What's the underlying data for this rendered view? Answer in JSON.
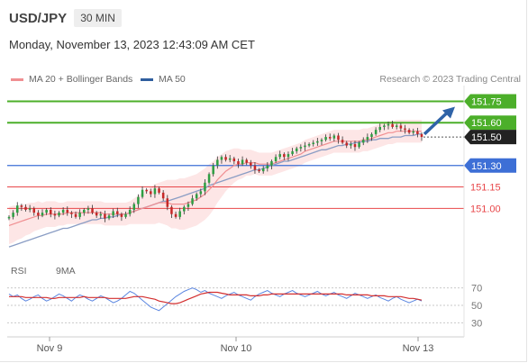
{
  "header": {
    "symbol": "USD/JPY",
    "timeframe": "30 MIN"
  },
  "datetime": "Monday, November 13, 2023 12:43:09 AM CET",
  "legend": {
    "ma20_bb": "MA 20 + Bollinger Bands",
    "ma50": "MA 50",
    "credit": "Research © 2023 Trading Central"
  },
  "rsi_legend": {
    "rsi": "RSI",
    "ma9": "9MA"
  },
  "colors": {
    "green": "#4caf2a",
    "blue": "#3d6fd6",
    "red": "#e8474a",
    "ma20": "#f08f92",
    "ma50": "#8a9dc4",
    "band": "#fde3e3",
    "candle_up": "#2e9e43",
    "candle_down": "#c62828",
    "arrow": "#2f63a8",
    "current": "#222222"
  },
  "chart_data": [
    {
      "type": "candlestick",
      "title": "",
      "ylim": [
        150.63,
        151.86
      ],
      "x_labels": [
        "Nov 9",
        "Nov 10",
        "Nov 13"
      ],
      "levels": [
        {
          "value": 151.75,
          "label": "151.75",
          "style": "green"
        },
        {
          "value": 151.6,
          "label": "151.60",
          "style": "green"
        },
        {
          "value": 151.5,
          "label": "151.50",
          "style": "current"
        },
        {
          "value": 151.3,
          "label": "151.30",
          "style": "blue"
        },
        {
          "value": 151.15,
          "label": "151.15",
          "style": "red"
        },
        {
          "value": 151.0,
          "label": "151.00",
          "style": "red"
        }
      ],
      "close_series": [
        150.94,
        150.97,
        151.02,
        151.01,
        150.99,
        151.0,
        150.97,
        150.95,
        150.97,
        150.99,
        150.96,
        150.95,
        150.97,
        150.99,
        150.97,
        150.96,
        150.94,
        150.97,
        150.99,
        151.0,
        150.97,
        150.95,
        150.96,
        150.93,
        150.95,
        150.98,
        150.96,
        150.94,
        150.96,
        150.99,
        151.03,
        151.08,
        151.13,
        151.12,
        151.1,
        151.14,
        151.11,
        151.07,
        151.01,
        150.96,
        150.94,
        150.98,
        151.01,
        151.03,
        151.07,
        151.1,
        151.12,
        151.18,
        151.24,
        151.3,
        151.34,
        151.36,
        151.34,
        151.35,
        151.33,
        151.31,
        151.34,
        151.32,
        151.3,
        151.27,
        151.26,
        151.28,
        151.3,
        151.33,
        151.36,
        151.38,
        151.36,
        151.38,
        151.4,
        151.42,
        151.43,
        151.44,
        151.45,
        151.46,
        151.47,
        151.48,
        151.5,
        151.49,
        151.51,
        151.48,
        151.46,
        151.44,
        151.45,
        151.43,
        151.46,
        151.48,
        151.5,
        151.52,
        151.55,
        151.57,
        151.58,
        151.59,
        151.57,
        151.58,
        151.56,
        151.55,
        151.53,
        151.54,
        151.52,
        151.5
      ],
      "ma20": [
        150.88,
        150.89,
        150.9,
        150.91,
        150.92,
        150.93,
        150.94,
        150.95,
        150.95,
        150.96,
        150.96,
        150.96,
        150.96,
        150.96,
        150.97,
        150.97,
        150.97,
        150.97,
        150.97,
        150.97,
        150.97,
        150.97,
        150.97,
        150.96,
        150.96,
        150.96,
        150.96,
        150.96,
        150.96,
        150.97,
        150.98,
        150.99,
        151.0,
        151.01,
        151.02,
        151.03,
        151.04,
        151.04,
        151.04,
        151.03,
        151.03,
        151.03,
        151.03,
        151.04,
        151.05,
        151.06,
        151.08,
        151.1,
        151.13,
        151.16,
        151.2,
        151.23,
        151.26,
        151.28,
        151.3,
        151.31,
        151.31,
        151.32,
        151.32,
        151.32,
        151.31,
        151.31,
        151.31,
        151.31,
        151.32,
        151.33,
        151.34,
        151.35,
        151.36,
        151.37,
        151.38,
        151.4,
        151.41,
        151.42,
        151.43,
        151.44,
        151.45,
        151.46,
        151.47,
        151.47,
        151.47,
        151.47,
        151.47,
        151.47,
        151.47,
        151.48,
        151.48,
        151.49,
        151.5,
        151.51,
        151.52,
        151.53,
        151.53,
        151.54,
        151.54,
        151.54,
        151.54,
        151.54,
        151.54,
        151.54
      ],
      "ma50": [
        150.73,
        150.74,
        150.75,
        150.76,
        150.77,
        150.78,
        150.79,
        150.8,
        150.81,
        150.82,
        150.83,
        150.84,
        150.85,
        150.86,
        150.86,
        150.87,
        150.88,
        150.89,
        150.9,
        150.91,
        150.92,
        150.92,
        150.93,
        150.93,
        150.94,
        150.94,
        150.95,
        150.96,
        150.96,
        150.97,
        150.98,
        150.99,
        151.0,
        151.01,
        151.02,
        151.03,
        151.04,
        151.05,
        151.05,
        151.06,
        151.07,
        151.08,
        151.09,
        151.1,
        151.11,
        151.12,
        151.13,
        151.14,
        151.16,
        151.17,
        151.18,
        151.19,
        151.2,
        151.21,
        151.22,
        151.23,
        151.24,
        151.25,
        151.26,
        151.27,
        151.27,
        151.28,
        151.29,
        151.3,
        151.31,
        151.32,
        151.33,
        151.33,
        151.34,
        151.35,
        151.36,
        151.37,
        151.38,
        151.39,
        151.4,
        151.41,
        151.41,
        151.42,
        151.43,
        151.44,
        151.44,
        151.45,
        151.45,
        151.46,
        151.46,
        151.47,
        151.47,
        151.48,
        151.48,
        151.49,
        151.49,
        151.49,
        151.5,
        151.5,
        151.5,
        151.51,
        151.51,
        151.51,
        151.52,
        151.52
      ],
      "band_width": [
        0.13,
        0.13,
        0.12,
        0.12,
        0.11,
        0.11,
        0.1,
        0.1,
        0.09,
        0.09,
        0.09,
        0.09,
        0.08,
        0.08,
        0.08,
        0.08,
        0.08,
        0.08,
        0.08,
        0.08,
        0.08,
        0.08,
        0.08,
        0.08,
        0.08,
        0.08,
        0.08,
        0.08,
        0.08,
        0.08,
        0.09,
        0.1,
        0.11,
        0.12,
        0.13,
        0.14,
        0.14,
        0.15,
        0.16,
        0.17,
        0.17,
        0.18,
        0.18,
        0.18,
        0.18,
        0.18,
        0.18,
        0.18,
        0.18,
        0.17,
        0.16,
        0.15,
        0.14,
        0.13,
        0.12,
        0.11,
        0.1,
        0.09,
        0.09,
        0.08,
        0.08,
        0.08,
        0.08,
        0.08,
        0.08,
        0.08,
        0.08,
        0.08,
        0.08,
        0.08,
        0.08,
        0.08,
        0.08,
        0.08,
        0.08,
        0.08,
        0.08,
        0.08,
        0.08,
        0.08,
        0.08,
        0.08,
        0.08,
        0.08,
        0.08,
        0.08,
        0.08,
        0.08,
        0.08,
        0.08,
        0.08,
        0.08,
        0.08,
        0.08,
        0.08,
        0.08,
        0.08,
        0.08,
        0.08,
        0.08
      ]
    },
    {
      "type": "line",
      "title": "",
      "ylim": [
        20,
        80
      ],
      "y_ticks": [
        70,
        50,
        30
      ],
      "series": [
        {
          "name": "RSI",
          "values": [
            63,
            60,
            62,
            58,
            55,
            57,
            60,
            62,
            58,
            55,
            57,
            60,
            63,
            61,
            58,
            55,
            59,
            62,
            60,
            57,
            55,
            58,
            61,
            59,
            56,
            53,
            55,
            58,
            62,
            66,
            64,
            60,
            56,
            52,
            48,
            46,
            44,
            48,
            52,
            56,
            60,
            63,
            66,
            68,
            70,
            68,
            65,
            67,
            64,
            62,
            60,
            58,
            61,
            63,
            65,
            62,
            60,
            58,
            56,
            60,
            63,
            65,
            67,
            64,
            62,
            60,
            63,
            65,
            67,
            64,
            62,
            60,
            62,
            64,
            66,
            63,
            61,
            63,
            65,
            62,
            60,
            58,
            61,
            64,
            62,
            60,
            58,
            60,
            62,
            59,
            57,
            55,
            58,
            60,
            57,
            55,
            53,
            55,
            57,
            55
          ]
        },
        {
          "name": "9MA",
          "values": [
            60,
            60,
            60,
            60,
            59,
            59,
            59,
            59,
            59,
            59,
            58,
            58,
            59,
            59,
            59,
            59,
            59,
            59,
            60,
            59,
            59,
            59,
            59,
            59,
            58,
            58,
            58,
            58,
            58,
            59,
            60,
            60,
            60,
            59,
            58,
            57,
            55,
            54,
            53,
            52,
            52,
            53,
            55,
            57,
            59,
            61,
            63,
            64,
            65,
            65,
            65,
            64,
            63,
            62,
            62,
            62,
            62,
            62,
            61,
            61,
            61,
            62,
            62,
            63,
            63,
            63,
            63,
            63,
            63,
            63,
            63,
            63,
            63,
            63,
            63,
            63,
            63,
            63,
            63,
            63,
            63,
            62,
            62,
            62,
            62,
            62,
            62,
            61,
            61,
            61,
            61,
            60,
            60,
            60,
            60,
            59,
            58,
            58,
            57,
            56
          ]
        }
      ]
    }
  ]
}
